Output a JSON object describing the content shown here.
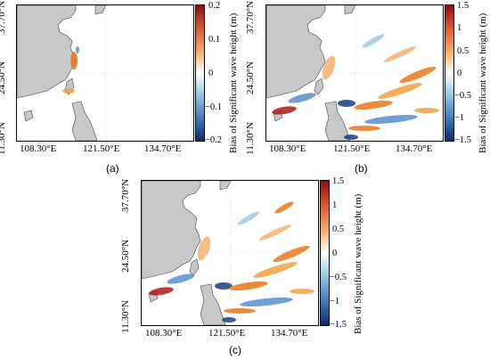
{
  "axes": {
    "lon_ticks": [
      "108.30°E",
      "121.50°E",
      "134.70°E"
    ],
    "lat_ticks": [
      "37.70°N",
      "24.50°N",
      "11.30°N"
    ]
  },
  "panels": [
    {
      "caption": "(a)",
      "colorbar": {
        "label": "Bias of Significant wave height (m)",
        "ticks": [
          "0.2",
          "0.1",
          "0",
          "−0.1",
          "−0.2"
        ],
        "range": [
          -0.2,
          0.2
        ]
      }
    },
    {
      "caption": "(b)",
      "colorbar": {
        "label": "Bias of Significant wave height (m)",
        "ticks": [
          "1.5",
          "1",
          "0.5",
          "0",
          "−0.5",
          "−1",
          "−1.5"
        ],
        "range": [
          -1.5,
          1.5
        ]
      }
    },
    {
      "caption": "(c)",
      "colorbar": {
        "label": "Bias of Significant wave height (m)",
        "ticks": [
          "1.5",
          "1",
          "0.5",
          "0",
          "−0.5",
          "−1",
          "−1.5"
        ],
        "range": [
          -1.5,
          1.5
        ]
      }
    }
  ],
  "colors": {
    "land": "#c8c8c8",
    "positive": "#e8781c",
    "strong_positive": "#b01818",
    "negative": "#5a8fcc",
    "strong_negative": "#1b3f82"
  }
}
